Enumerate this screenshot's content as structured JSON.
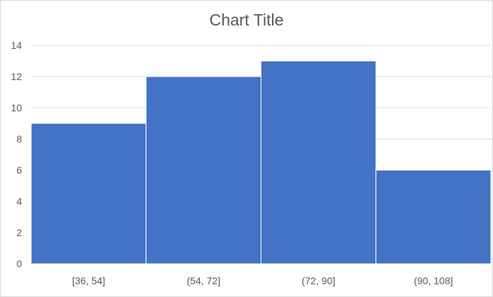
{
  "chart_data": {
    "type": "bar",
    "title": "Chart Title",
    "categories": [
      "[36, 54]",
      "(54, 72]",
      "(72, 90]",
      "(90, 108]"
    ],
    "values": [
      9,
      12,
      13,
      6
    ],
    "xlabel": "",
    "ylabel": "",
    "ylim": [
      0,
      14
    ],
    "yticks": [
      0,
      2,
      4,
      6,
      8,
      10,
      12,
      14
    ],
    "grid": true,
    "bar_color": "#4472C4",
    "gridline_color": "#d9d9d9",
    "text_color": "#595959"
  }
}
